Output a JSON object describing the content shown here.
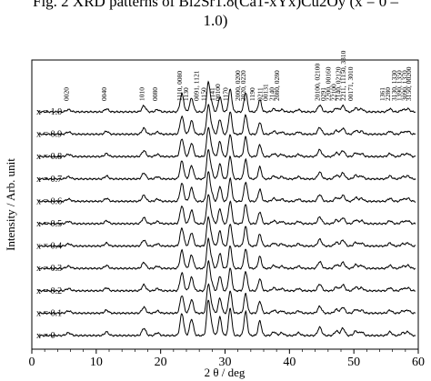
{
  "caption": {
    "line1": "Fig. 2   XRD patterns of Bi2Sr1.8(Ca1-xYx)Cu2Oy (x = 0 –",
    "line2": "1.0)"
  },
  "chart_data": {
    "type": "line",
    "title": "Fig. 2 XRD patterns of Bi2Sr1.8(Ca1-xYx)Cu2Oy (x = 0 – 1.0)",
    "xlabel": "2 θ / deg",
    "ylabel": "Intensity / Arb. unit",
    "xlim": [
      0,
      60
    ],
    "x_ticks": [
      0,
      10,
      20,
      30,
      40,
      50,
      60
    ],
    "grid": false,
    "legend": "none",
    "series": [
      {
        "name": "x = 0"
      },
      {
        "name": "x = 0.1"
      },
      {
        "name": "x = 0.2"
      },
      {
        "name": "x = 0.3"
      },
      {
        "name": "x = 0.4"
      },
      {
        "name": "x = 0.5"
      },
      {
        "name": "x = 0.6"
      },
      {
        "name": "x = 0.7"
      },
      {
        "name": "x = 0.8"
      },
      {
        "name": "x = 0.9"
      },
      {
        "name": "x = 1.0"
      }
    ],
    "peaks": [
      {
        "x": 5.7,
        "h": 3,
        "w": 0.35
      },
      {
        "x": 11.6,
        "h": 4,
        "w": 0.3
      },
      {
        "x": 17.4,
        "h": 8,
        "w": 0.3
      },
      {
        "x": 19.5,
        "h": 3,
        "w": 0.3
      },
      {
        "x": 23.3,
        "h": 24,
        "w": 0.28
      },
      {
        "x": 24.8,
        "h": 18,
        "w": 0.28
      },
      {
        "x": 27.4,
        "h": 38,
        "w": 0.25
      },
      {
        "x": 27.9,
        "h": 10,
        "w": 0.25
      },
      {
        "x": 29.2,
        "h": 20,
        "w": 0.25
      },
      {
        "x": 30.8,
        "h": 30,
        "w": 0.25
      },
      {
        "x": 33.2,
        "h": 26,
        "w": 0.25
      },
      {
        "x": 35.4,
        "h": 16,
        "w": 0.25
      },
      {
        "x": 37.6,
        "h": 4,
        "w": 0.3
      },
      {
        "x": 38.8,
        "h": 3,
        "w": 0.3
      },
      {
        "x": 41.4,
        "h": 3,
        "w": 0.3
      },
      {
        "x": 44.7,
        "h": 9,
        "w": 0.3
      },
      {
        "x": 47.3,
        "h": 5,
        "w": 0.3
      },
      {
        "x": 48.3,
        "h": 8,
        "w": 0.3
      },
      {
        "x": 50.3,
        "h": 5,
        "w": 0.3
      },
      {
        "x": 51.2,
        "h": 4,
        "w": 0.3
      },
      {
        "x": 55.6,
        "h": 4,
        "w": 0.3
      },
      {
        "x": 57.6,
        "h": 3,
        "w": 0.3
      },
      {
        "x": 58.4,
        "h": 4,
        "w": 0.3
      }
    ],
    "peak_labels": [
      {
        "x": 5.7,
        "text": "0020"
      },
      {
        "x": 11.6,
        "text": "0040"
      },
      {
        "x": 17.4,
        "text": "1010"
      },
      {
        "x": 19.5,
        "text": "0080"
      },
      {
        "x": 23.3,
        "text": "1110, 0080"
      },
      {
        "x": 24.3,
        "text": "1130"
      },
      {
        "x": 25.9,
        "text": "0091, 1121"
      },
      {
        "x": 27.0,
        "text": "1150"
      },
      {
        "x": 28.4,
        "text": "1141"
      },
      {
        "x": 29.2,
        "text": "00100"
      },
      {
        "x": 30.4,
        "text": "1170"
      },
      {
        "x": 32.3,
        "text": "2000, 0200"
      },
      {
        "x": 33.2,
        "text": "2020, 0220"
      },
      {
        "x": 34.6,
        "text": "1190"
      },
      {
        "x": 35.8,
        "text": "0211"
      },
      {
        "x": 36.6,
        "text": "00131"
      },
      {
        "x": 37.6,
        "text": "2140"
      },
      {
        "x": 38.4,
        "text": "2080, 0280"
      },
      {
        "x": 44.7,
        "text": "20100, 02100"
      },
      {
        "x": 45.6,
        "text": "0291"
      },
      {
        "x": 46.4,
        "text": "2200, 00160"
      },
      {
        "x": 47.2,
        "text": "22100"
      },
      {
        "x": 47.9,
        "text": "2140, 02120"
      },
      {
        "x": 48.7,
        "text": "2211, 11150, 3310"
      },
      {
        "x": 49.8,
        "text": "00171, 3010"
      },
      {
        "x": 54.8,
        "text": "1361"
      },
      {
        "x": 55.6,
        "text": "2280"
      },
      {
        "x": 56.6,
        "text": "3130, 1330"
      },
      {
        "x": 57.4,
        "text": "1390, 1350"
      },
      {
        "x": 58.2,
        "text": "3090, 1370"
      },
      {
        "x": 58.9,
        "text": "3150, 00200"
      }
    ]
  }
}
